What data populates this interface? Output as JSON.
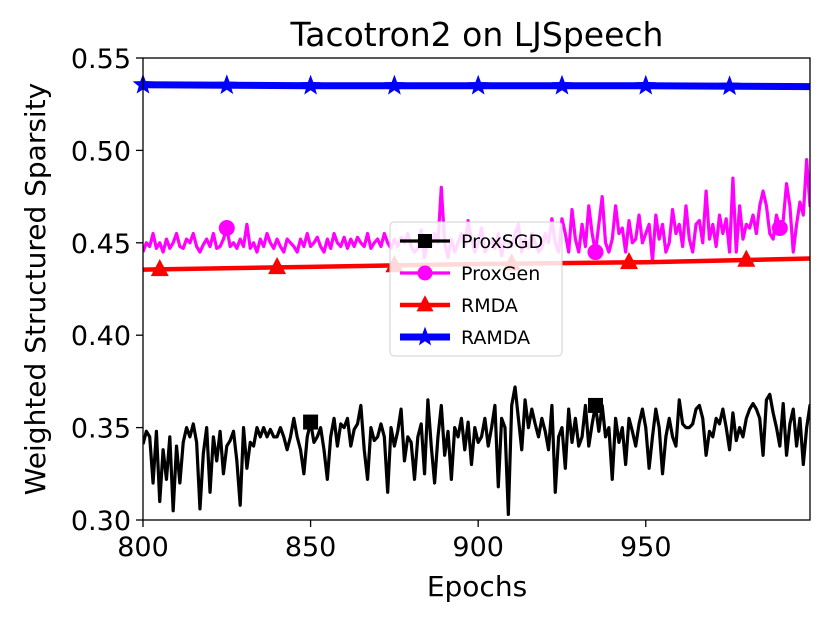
{
  "chart_data": {
    "type": "line",
    "title": "Tacotron2 on LJSpeech",
    "xlabel": "Epochs",
    "ylabel": "Weighted Structured Sparsity",
    "xlim": [
      800,
      999
    ],
    "ylim": [
      0.3,
      0.55
    ],
    "xticks": [
      800,
      850,
      900,
      950
    ],
    "xtick_labels": [
      "800",
      "850",
      "900",
      "950"
    ],
    "yticks": [
      0.3,
      0.35,
      0.4,
      0.45,
      0.5,
      0.55
    ],
    "ytick_labels": [
      "0.30",
      "0.35",
      "0.40",
      "0.45",
      "0.50",
      "0.55"
    ],
    "grid": false,
    "legend_position": "center",
    "series": [
      {
        "name": "ProxSGD",
        "color": "#000000",
        "marker": "square",
        "markers_at": [
          850,
          935
        ],
        "x_start": 800,
        "x_step": 1,
        "values": [
          0.341,
          0.348,
          0.345,
          0.32,
          0.348,
          0.31,
          0.338,
          0.322,
          0.345,
          0.305,
          0.34,
          0.32,
          0.342,
          0.35,
          0.345,
          0.352,
          0.342,
          0.306,
          0.336,
          0.35,
          0.315,
          0.345,
          0.332,
          0.348,
          0.325,
          0.34,
          0.343,
          0.348,
          0.332,
          0.308,
          0.35,
          0.328,
          0.342,
          0.34,
          0.35,
          0.345,
          0.35,
          0.345,
          0.349,
          0.345,
          0.345,
          0.35,
          0.345,
          0.338,
          0.345,
          0.355,
          0.345,
          0.338,
          0.325,
          0.345,
          0.353,
          0.342,
          0.345,
          0.35,
          0.338,
          0.322,
          0.345,
          0.355,
          0.34,
          0.352,
          0.35,
          0.355,
          0.34,
          0.349,
          0.352,
          0.362,
          0.338,
          0.322,
          0.35,
          0.343,
          0.345,
          0.352,
          0.345,
          0.315,
          0.35,
          0.34,
          0.348,
          0.36,
          0.332,
          0.345,
          0.342,
          0.322,
          0.345,
          0.352,
          0.325,
          0.365,
          0.34,
          0.32,
          0.345,
          0.362,
          0.335,
          0.348,
          0.322,
          0.35,
          0.345,
          0.355,
          0.338,
          0.353,
          0.33,
          0.35,
          0.342,
          0.345,
          0.355,
          0.34,
          0.35,
          0.362,
          0.318,
          0.355,
          0.35,
          0.303,
          0.362,
          0.372,
          0.355,
          0.338,
          0.365,
          0.35,
          0.36,
          0.352,
          0.345,
          0.355,
          0.348,
          0.338,
          0.362,
          0.315,
          0.345,
          0.35,
          0.328,
          0.36,
          0.342,
          0.355,
          0.34,
          0.345,
          0.362,
          0.34,
          0.352,
          0.362,
          0.348,
          0.362,
          0.345,
          0.35,
          0.322,
          0.355,
          0.342,
          0.35,
          0.33,
          0.355,
          0.348,
          0.34,
          0.352,
          0.36,
          0.35,
          0.328,
          0.345,
          0.36,
          0.35,
          0.325,
          0.345,
          0.355,
          0.345,
          0.34,
          0.365,
          0.352,
          0.35,
          0.35,
          0.352,
          0.36,
          0.362,
          0.355,
          0.335,
          0.348,
          0.345,
          0.355,
          0.352,
          0.36,
          0.35,
          0.338,
          0.358,
          0.343,
          0.35,
          0.345,
          0.355,
          0.36,
          0.363,
          0.36,
          0.355,
          0.335,
          0.365,
          0.368,
          0.358,
          0.35,
          0.34,
          0.363,
          0.335,
          0.352,
          0.36,
          0.34,
          0.355,
          0.33,
          0.35,
          0.362,
          0.34,
          0.34,
          0.355,
          0.345,
          0.36,
          0.325,
          0.358
        ]
      },
      {
        "name": "ProxGen",
        "color": "#ff00ff",
        "marker": "circle",
        "markers_at": [
          825,
          935,
          990
        ],
        "x_start": 800,
        "x_step": 1,
        "values": [
          0.445,
          0.45,
          0.448,
          0.455,
          0.447,
          0.45,
          0.445,
          0.452,
          0.447,
          0.45,
          0.455,
          0.448,
          0.447,
          0.452,
          0.45,
          0.455,
          0.448,
          0.445,
          0.449,
          0.452,
          0.448,
          0.455,
          0.447,
          0.448,
          0.452,
          0.458,
          0.448,
          0.45,
          0.447,
          0.452,
          0.448,
          0.46,
          0.447,
          0.45,
          0.445,
          0.452,
          0.448,
          0.455,
          0.45,
          0.447,
          0.452,
          0.448,
          0.445,
          0.452,
          0.45,
          0.448,
          0.445,
          0.452,
          0.448,
          0.455,
          0.448,
          0.45,
          0.453,
          0.448,
          0.445,
          0.452,
          0.447,
          0.455,
          0.45,
          0.448,
          0.453,
          0.447,
          0.452,
          0.448,
          0.453,
          0.45,
          0.448,
          0.455,
          0.447,
          0.45,
          0.452,
          0.448,
          0.455,
          0.45,
          0.447,
          0.452,
          0.448,
          0.453,
          0.45,
          0.455,
          0.448,
          0.445,
          0.447,
          0.457,
          0.442,
          0.452,
          0.448,
          0.455,
          0.45,
          0.48,
          0.45,
          0.442,
          0.452,
          0.445,
          0.45,
          0.455,
          0.448,
          0.462,
          0.452,
          0.445,
          0.45,
          0.458,
          0.445,
          0.448,
          0.452,
          0.447,
          0.455,
          0.443,
          0.453,
          0.45,
          0.448,
          0.455,
          0.46,
          0.445,
          0.452,
          0.447,
          0.455,
          0.45,
          0.445,
          0.447,
          0.455,
          0.45,
          0.463,
          0.45,
          0.445,
          0.463,
          0.455,
          0.445,
          0.468,
          0.452,
          0.445,
          0.46,
          0.448,
          0.47,
          0.455,
          0.445,
          0.46,
          0.475,
          0.45,
          0.445,
          0.452,
          0.47,
          0.455,
          0.458,
          0.445,
          0.462,
          0.45,
          0.452,
          0.465,
          0.45,
          0.455,
          0.46,
          0.44,
          0.465,
          0.452,
          0.46,
          0.445,
          0.45,
          0.468,
          0.455,
          0.46,
          0.448,
          0.47,
          0.452,
          0.445,
          0.46,
          0.462,
          0.45,
          0.478,
          0.452,
          0.46,
          0.448,
          0.465,
          0.455,
          0.463,
          0.445,
          0.485,
          0.445,
          0.47,
          0.452,
          0.46,
          0.458,
          0.465,
          0.455,
          0.47,
          0.478,
          0.47,
          0.455,
          0.452,
          0.465,
          0.458,
          0.462,
          0.482,
          0.47,
          0.445,
          0.46,
          0.472,
          0.465,
          0.495,
          0.47,
          0.475,
          0.452,
          0.472,
          0.462,
          0.49,
          0.47,
          0.465
        ]
      },
      {
        "name": "RMDA",
        "color": "#ff0000",
        "marker": "triangle",
        "markers_at": [
          805,
          840,
          875,
          910,
          945,
          980
        ],
        "x": [
          800,
          850,
          900,
          950,
          999
        ],
        "values": [
          0.4355,
          0.437,
          0.4385,
          0.4395,
          0.4415
        ]
      },
      {
        "name": "RAMDA",
        "color": "#0000ff",
        "marker": "star",
        "markers_at": [
          800,
          825,
          850,
          875,
          900,
          925,
          950,
          975
        ],
        "x": [
          800,
          850,
          900,
          950,
          999
        ],
        "values": [
          0.5355,
          0.535,
          0.535,
          0.535,
          0.5345
        ]
      }
    ]
  }
}
